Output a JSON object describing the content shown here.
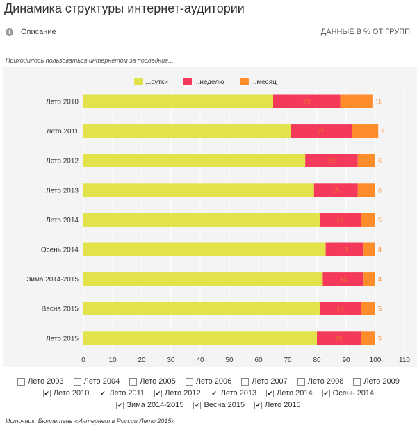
{
  "page": {
    "title": "Динамика структуры интернет-аудитории",
    "description_label": "Описание",
    "info_icon_glyph": "i",
    "units_label": "ДАННЫЕ В % ОТ ГРУПП",
    "subtitle": "Приходилось пользоваться интернетом за последние...",
    "source": "Источник: Бюллетень «Интернет в России.Лето 2015»"
  },
  "chart_data": {
    "type": "bar",
    "orientation": "horizontal",
    "stacked": true,
    "categories": [
      "Лето 2010",
      "Лето 2011",
      "Лето 2012",
      "Лето 2013",
      "Лето 2014",
      "Осень 2014",
      "Зима 2014-2015",
      "Весна 2015",
      "Лето 2015"
    ],
    "series": [
      {
        "name": "...сутки",
        "color": "#e2e24a",
        "values": [
          65,
          71,
          76,
          79,
          81,
          83,
          82,
          81,
          80
        ]
      },
      {
        "name": "...неделю",
        "color": "#f4395a",
        "values": [
          23,
          21,
          18,
          15,
          14,
          13,
          14,
          14,
          15
        ]
      },
      {
        "name": "...месяц",
        "color": "#ff8c2a",
        "values": [
          11,
          9,
          6,
          6,
          5,
          4,
          4,
          5,
          5
        ]
      }
    ],
    "xlim": [
      0,
      110
    ],
    "xticks": [
      0,
      10,
      20,
      30,
      40,
      50,
      60,
      70,
      80,
      90,
      100,
      110
    ],
    "legend_position": "top",
    "grid": true,
    "label_color": "#e8762a",
    "outside_label_color": "#ff8c2a"
  },
  "filters": {
    "rows": [
      [
        {
          "label": "Лето 2003",
          "checked": false
        },
        {
          "label": "Лето 2004",
          "checked": false
        },
        {
          "label": "Лето 2005",
          "checked": false
        },
        {
          "label": "Лето 2006",
          "checked": false
        },
        {
          "label": "Лето 2007",
          "checked": false
        },
        {
          "label": "Лето 2008",
          "checked": false
        },
        {
          "label": "Лето 2009",
          "checked": false
        }
      ],
      [
        {
          "label": "Лето 2010",
          "checked": true
        },
        {
          "label": "Лето 2011",
          "checked": true
        },
        {
          "label": "Лето 2012",
          "checked": true
        },
        {
          "label": "Лето 2013",
          "checked": true
        },
        {
          "label": "Лето 2014",
          "checked": true
        },
        {
          "label": "Осень 2014",
          "checked": true
        }
      ],
      [
        {
          "label": "Зима 2014-2015",
          "checked": true
        },
        {
          "label": "Весна 2015",
          "checked": true
        },
        {
          "label": "Лето 2015",
          "checked": true
        }
      ]
    ],
    "check_glyph": "✔"
  }
}
